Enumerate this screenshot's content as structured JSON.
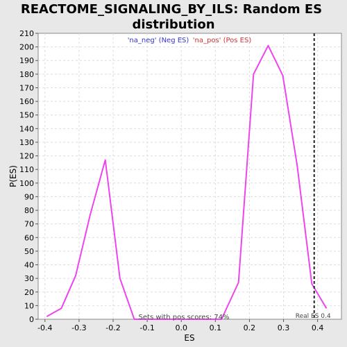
{
  "chart_data": {
    "type": "line",
    "title": "REACTOME_SIGNALING_BY_ILS: Random ES distribution",
    "title_lines": [
      "REACTOME_SIGNALING_BY_ILS: Random ES",
      "distribution"
    ],
    "xlabel": "ES",
    "ylabel": "P(ES)",
    "xlim": [
      -0.42,
      0.47
    ],
    "ylim": [
      0,
      210
    ],
    "x_ticks": [
      -0.4,
      -0.3,
      -0.2,
      -0.1,
      0.0,
      0.1,
      0.2,
      0.3,
      0.4
    ],
    "x_tick_labels": [
      "-0.4",
      "-0.3",
      "-0.2",
      "-0.1",
      "0.0",
      "0.1",
      "0.2",
      "0.3",
      "0.4"
    ],
    "y_ticks": [
      0,
      10,
      20,
      30,
      40,
      50,
      60,
      70,
      80,
      90,
      100,
      110,
      120,
      130,
      140,
      150,
      160,
      170,
      180,
      190,
      200,
      210
    ],
    "grid": true,
    "legend": [
      {
        "label": "'na_neg' (Neg ES)",
        "color": "#3333cc"
      },
      {
        "label": "'na_pos' (Pos ES)",
        "color": "#cc3333"
      }
    ],
    "legend_position": "top-center",
    "series": [
      {
        "color": "#ee44ee",
        "x": [
          -0.395,
          -0.352,
          -0.31,
          -0.267,
          -0.223,
          -0.18,
          -0.138,
          -0.095,
          -0.052,
          -0.01,
          0.033,
          0.076,
          0.118,
          0.168,
          0.212,
          0.255,
          0.298,
          0.34,
          0.383,
          0.426
        ],
        "y": [
          2,
          8,
          32,
          77,
          117,
          30,
          0,
          0,
          0,
          0,
          0,
          0,
          0,
          27,
          180,
          201,
          179,
          113,
          26,
          8
        ]
      }
    ],
    "vline": {
      "x": 0.39,
      "label": "Real ES 0.4",
      "style": "dashed",
      "color": "#222222"
    },
    "annotation": "Sets with pos scores: 74%"
  }
}
